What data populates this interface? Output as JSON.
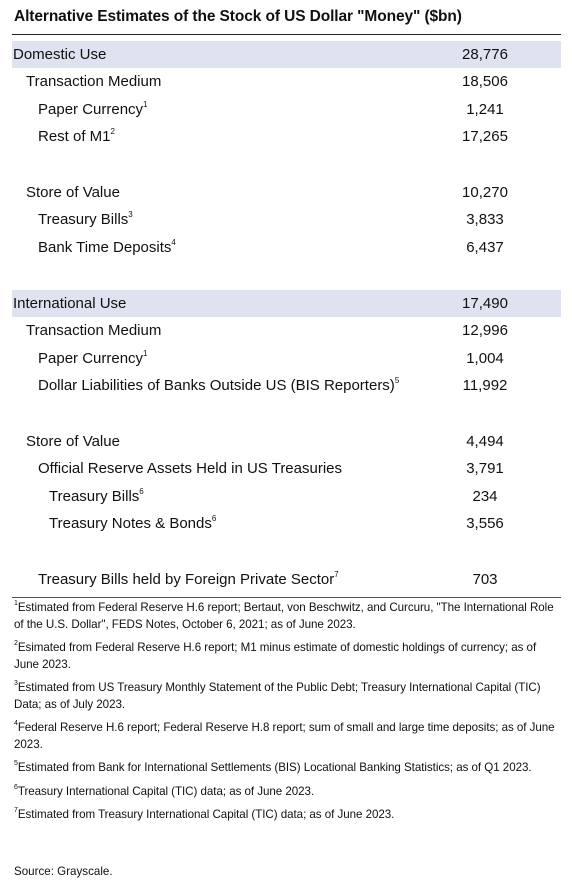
{
  "title": "Alternative Estimates of the Stock of US Dollar \"Money\" ($bn)",
  "rows": [
    {
      "label": "Domestic Use",
      "sup": "",
      "value": "28,776"
    },
    {
      "label": "Transaction Medium",
      "sup": "",
      "value": "18,506"
    },
    {
      "label": "Paper Currency",
      "sup": "1",
      "value": "1,241"
    },
    {
      "label": "Rest of M1",
      "sup": "2",
      "value": "17,265"
    },
    {
      "label": "Store of Value",
      "sup": "",
      "value": "10,270"
    },
    {
      "label": "Treasury Bills",
      "sup": "3",
      "value": "3,833"
    },
    {
      "label": "Bank Time Deposits",
      "sup": "4",
      "value": "6,437"
    },
    {
      "label": "International Use",
      "sup": "",
      "value": "17,490"
    },
    {
      "label": "Transaction Medium",
      "sup": "",
      "value": "12,996"
    },
    {
      "label": "Paper Currency",
      "sup": "1",
      "value": "1,004"
    },
    {
      "label": "Dollar Liabilities of Banks Outside US (BIS Reporters)",
      "sup": "5",
      "value": "11,992"
    },
    {
      "label": "Store of Value",
      "sup": "",
      "value": "4,494"
    },
    {
      "label": "Official Reserve Assets Held in US Treasuries",
      "sup": "",
      "value": "3,791"
    },
    {
      "label": "Treasury Bills",
      "sup": "6",
      "value": "234"
    },
    {
      "label": "Treasury Notes & Bonds",
      "sup": "6",
      "value": "3,556"
    },
    {
      "label": "Treasury Bills held by Foreign Private Sector",
      "sup": "7",
      "value": "703"
    }
  ],
  "footnotes": [
    {
      "num": "1",
      "text": "Estimated from Federal Reserve H.6 report; Bertaut, von Beschwitz, and Curcuru, \"The International Role of the U.S. Dollar\", FEDS Notes, October 6, 2021; as of June 2023."
    },
    {
      "num": "2",
      "text": "Esimated from Federal Reserve H.6 report; M1 minus estimate of domestic holdings of currency; as of June 2023."
    },
    {
      "num": "3",
      "text": "Estimated from US Treasury Monthly Statement of the Public Debt; Treasury International Capital (TIC) Data; as of July 2023."
    },
    {
      "num": "4",
      "text": "Federal Reserve H.6 report; Federal Reserve H.8 report; sum of small and large time deposits; as of June 2023."
    },
    {
      "num": "5",
      "text": "Estimated from Bank for International Settlements (BIS) Locational Banking Statistics; as of Q1 2023."
    },
    {
      "num": "6",
      "text": "Treasury International Capital (TIC) data; as of June 2023."
    },
    {
      "num": "7",
      "text": "Estimated from Treasury International Capital (TIC) data; as of June 2023."
    }
  ],
  "source": "Source: Grayscale."
}
